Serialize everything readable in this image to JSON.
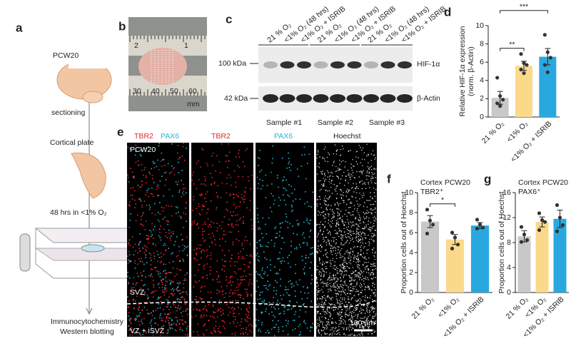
{
  "figure": {
    "panel_labels": [
      "a",
      "b",
      "c",
      "d",
      "e",
      "f",
      "g"
    ],
    "workflow": {
      "age": "PCW20",
      "step1": "sectioning",
      "tissue": "Cortical plate",
      "step2": "48 hrs in <1% O₂",
      "outputs": [
        "Immunocytochemistry",
        "Western blotting"
      ]
    },
    "photo": {
      "ruler_top": [
        "1",
        "2"
      ],
      "ruler_bottom": [
        "30",
        "40",
        "50",
        "60"
      ],
      "unit": "mm"
    },
    "blot": {
      "lanes": [
        "21 % O₂",
        "<1% O₂ (48 hrs)",
        "<1% O₂ + ISRIB",
        "21 % O₂",
        "<1% O₂ (48 hrs)",
        "<1% O₂ + ISRIB",
        "21 % O₂",
        "<1% O₂ (48 hrs)",
        "<1% O₂ + ISRIB"
      ],
      "markers": [
        "100 kDa",
        "42 kDa"
      ],
      "proteins": [
        "HIF-1α",
        "β-Actin"
      ],
      "samples": [
        "Sample #1",
        "Sample #2",
        "Sample #3"
      ]
    },
    "imaging": {
      "channels": [
        "TBR2",
        "PAX6",
        "TBR2",
        "PAX6",
        "Hoechst"
      ],
      "age": "PCW20",
      "zones": [
        "SVZ",
        "VZ + iSVZ"
      ],
      "scale": "100 µm"
    }
  },
  "chart_data": [
    {
      "type": "bar",
      "ylabel": [
        "Relative HIF-1α expression",
        "(norm. β-Actin)"
      ],
      "categories": [
        "21 % O₂",
        "<1% O₂",
        "<1% O₂ + ISRIB"
      ],
      "colors": [
        "#c8c8c8",
        "#fbd98b",
        "#29a8e0"
      ],
      "values": [
        2.1,
        5.6,
        6.6
      ],
      "errors": [
        0.7,
        0.5,
        0.9
      ],
      "points": [
        [
          4.3,
          2.3,
          1.9,
          1.5,
          1.2
        ],
        [
          6.9,
          5.9,
          5.7,
          5.2,
          4.8
        ],
        [
          9.0,
          7.1,
          6.5,
          5.7,
          4.9
        ]
      ],
      "significance": [
        {
          "pair": [
            0,
            1
          ],
          "label": "**"
        },
        {
          "pair": [
            0,
            2
          ],
          "label": "***"
        }
      ],
      "ylim": [
        0,
        10
      ],
      "yticks": [
        0,
        2,
        4,
        6,
        8,
        10
      ]
    },
    {
      "type": "bar",
      "title": "Cortex PCW20",
      "subtitle": "TBR2⁺",
      "ylabel": [
        "Proportion cells out of Hoechst"
      ],
      "categories": [
        "21 % O₂",
        "<1% O₂",
        "<1% O₂ + ISRIB"
      ],
      "colors": [
        "#c8c8c8",
        "#fbd98b",
        "#29a8e0"
      ],
      "values": [
        7.1,
        5.3,
        6.7
      ],
      "errors": [
        0.6,
        0.5,
        0.3
      ],
      "points": [
        [
          8.3,
          7.2,
          6.8,
          5.9
        ],
        [
          6.0,
          5.5,
          4.8,
          4.4
        ],
        [
          7.3,
          6.8,
          6.5,
          6.4
        ]
      ],
      "significance": [
        {
          "pair": [
            0,
            1
          ],
          "label": "*"
        }
      ],
      "ylim": [
        0,
        10
      ],
      "yticks": [
        0,
        2,
        4,
        6,
        8,
        10
      ]
    },
    {
      "type": "bar",
      "title": "Cortex PCW20",
      "subtitle": "PAX6⁺",
      "ylabel": [
        "Proportion cells out of Hoechst"
      ],
      "categories": [
        "21 % O₂",
        "<1% O₂",
        "<1% O₂ + ISRIB"
      ],
      "colors": [
        "#c8c8c8",
        "#fbd98b",
        "#29a8e0"
      ],
      "values": [
        9.0,
        11.3,
        11.8
      ],
      "errors": [
        0.9,
        0.8,
        1.4
      ],
      "points": [
        [
          10.5,
          9.3,
          8.4,
          8.1
        ],
        [
          12.7,
          11.6,
          11.3,
          10.0
        ],
        [
          14.0,
          12.0,
          10.8,
          9.8
        ]
      ],
      "significance": [],
      "ylim": [
        0,
        16
      ],
      "yticks": [
        0,
        4,
        8,
        12,
        16
      ]
    }
  ]
}
